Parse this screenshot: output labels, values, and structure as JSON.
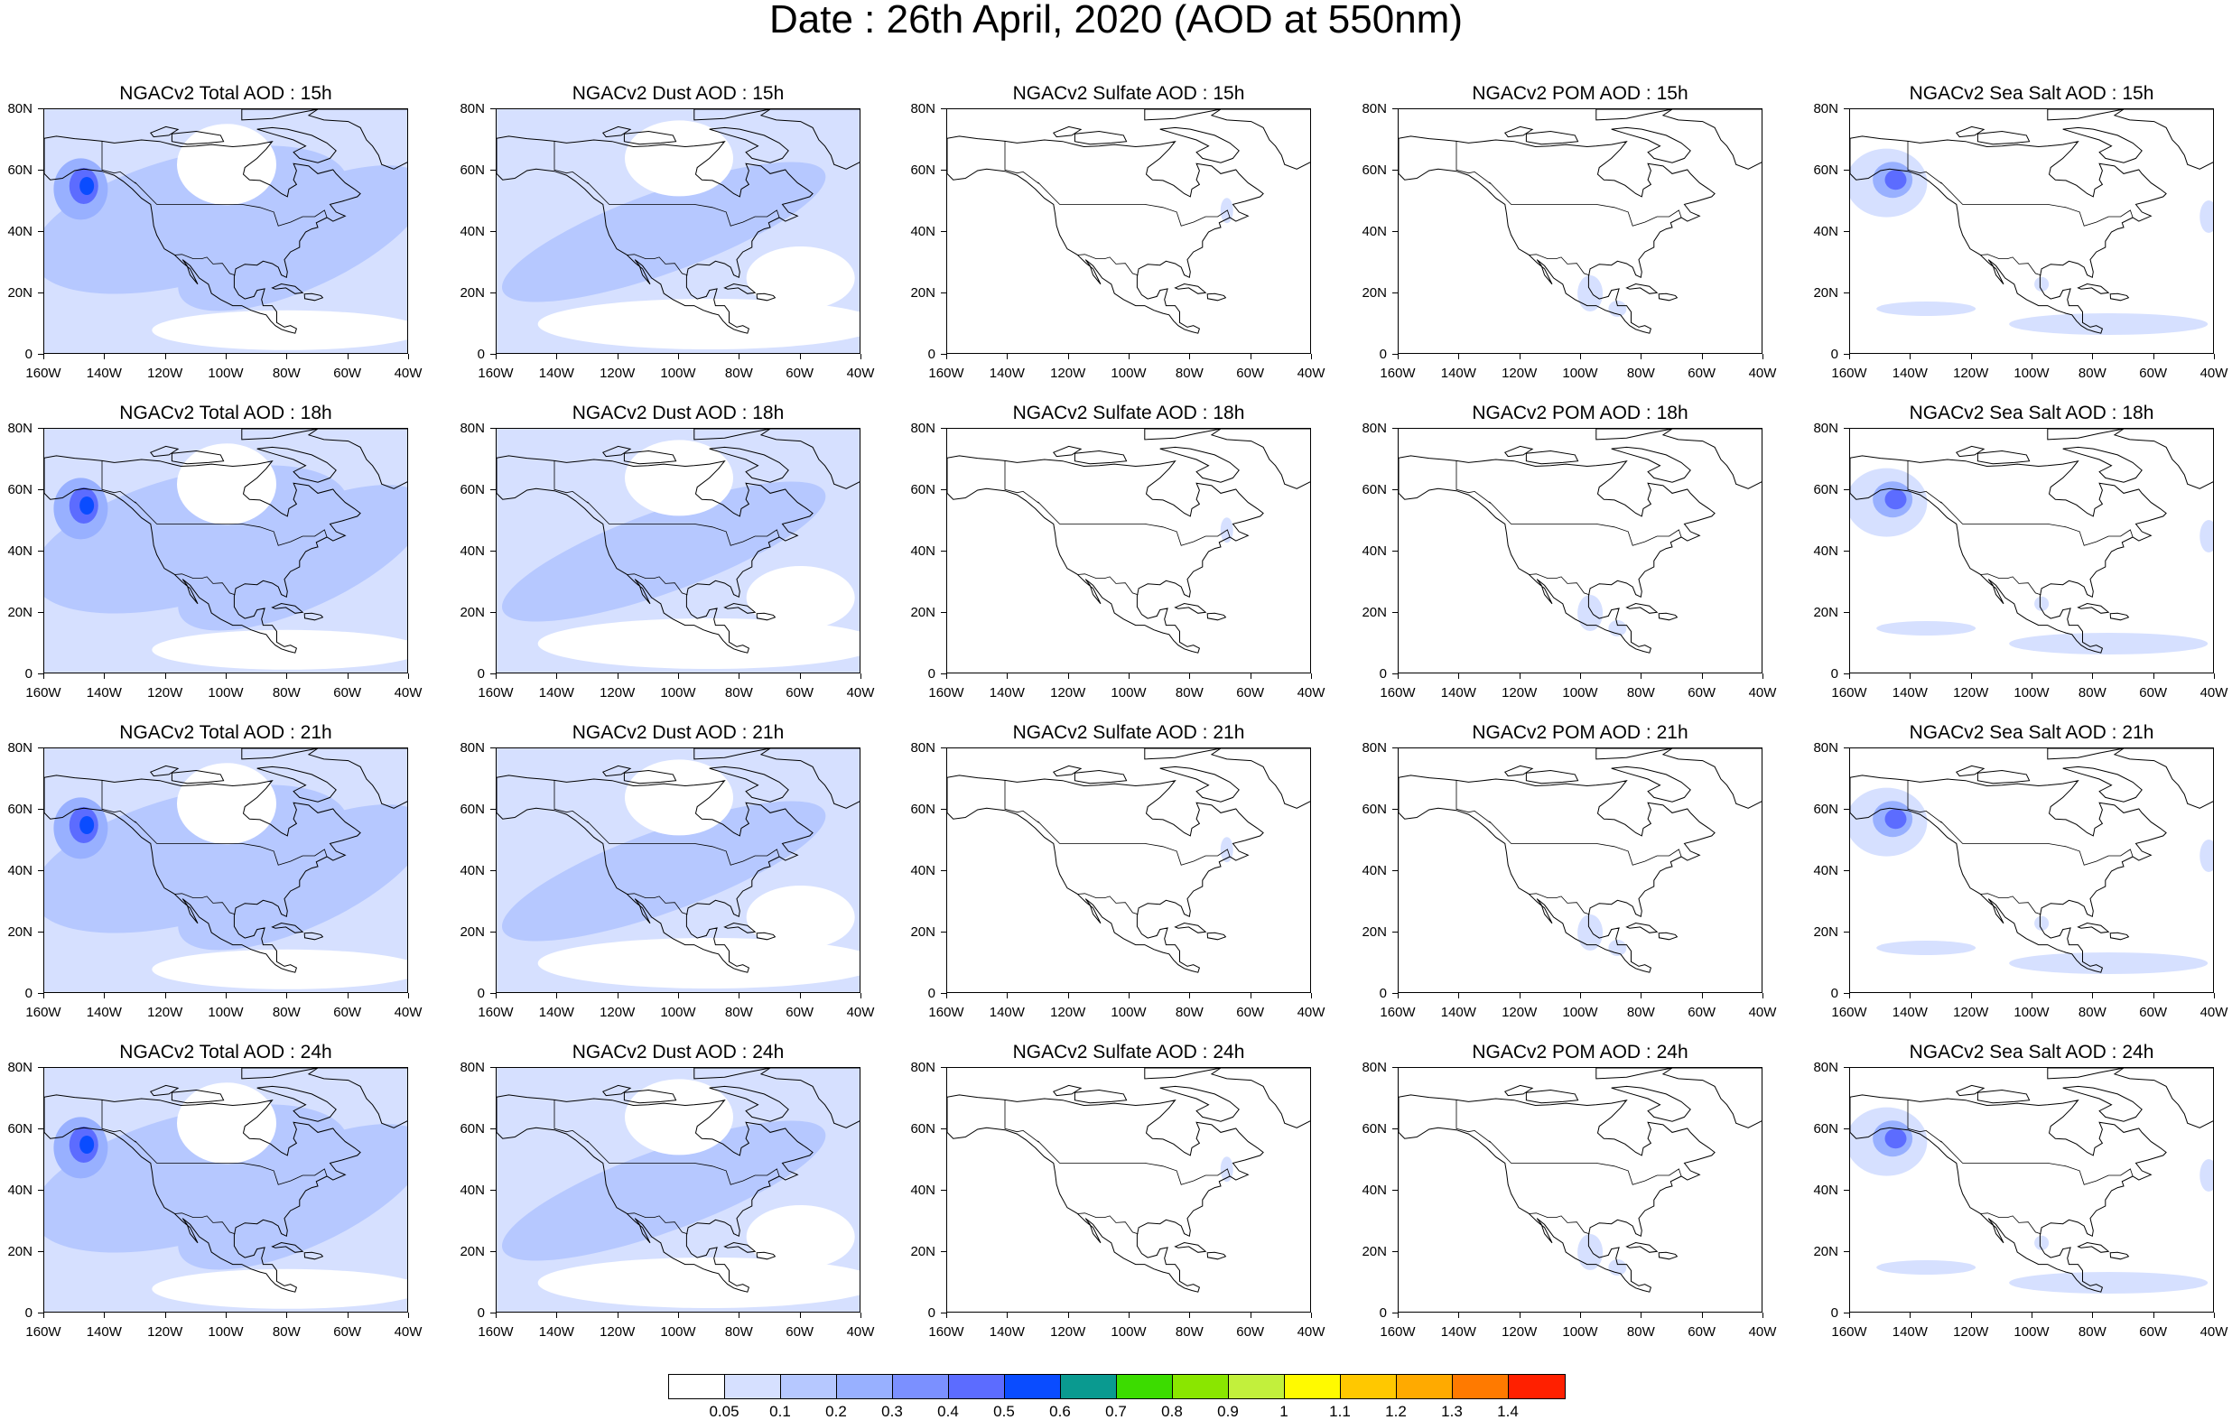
{
  "page": {
    "title": "Date : 26th April, 2020 (AOD at 550nm)"
  },
  "axes": {
    "y_ticks": [
      "80N",
      "60N",
      "40N",
      "20N",
      "0"
    ],
    "x_ticks": [
      "160W",
      "140W",
      "120W",
      "100W",
      "80W",
      "60W",
      "40W"
    ]
  },
  "panels": [
    {
      "title": "NGACv2 Total AOD : 15h",
      "field": "total",
      "hour": "15h"
    },
    {
      "title": "NGACv2 Dust AOD : 15h",
      "field": "dust",
      "hour": "15h"
    },
    {
      "title": "NGACv2 Sulfate AOD : 15h",
      "field": "sulfate",
      "hour": "15h"
    },
    {
      "title": "NGACv2 POM AOD : 15h",
      "field": "pom",
      "hour": "15h"
    },
    {
      "title": "NGACv2 Sea Salt AOD : 15h",
      "field": "seasalt",
      "hour": "15h"
    },
    {
      "title": "NGACv2 Total AOD : 18h",
      "field": "total",
      "hour": "18h"
    },
    {
      "title": "NGACv2 Dust AOD : 18h",
      "field": "dust",
      "hour": "18h"
    },
    {
      "title": "NGACv2 Sulfate AOD : 18h",
      "field": "sulfate",
      "hour": "18h"
    },
    {
      "title": "NGACv2 POM AOD : 18h",
      "field": "pom",
      "hour": "18h"
    },
    {
      "title": "NGACv2 Sea Salt AOD : 18h",
      "field": "seasalt",
      "hour": "18h"
    },
    {
      "title": "NGACv2 Total AOD : 21h",
      "field": "total",
      "hour": "21h"
    },
    {
      "title": "NGACv2 Dust AOD : 21h",
      "field": "dust",
      "hour": "21h"
    },
    {
      "title": "NGACv2 Sulfate AOD : 21h",
      "field": "sulfate",
      "hour": "21h"
    },
    {
      "title": "NGACv2 POM AOD : 21h",
      "field": "pom",
      "hour": "21h"
    },
    {
      "title": "NGACv2 Sea Salt AOD : 21h",
      "field": "seasalt",
      "hour": "21h"
    },
    {
      "title": "NGACv2 Total AOD : 24h",
      "field": "total",
      "hour": "24h"
    },
    {
      "title": "NGACv2 Dust AOD : 24h",
      "field": "dust",
      "hour": "24h"
    },
    {
      "title": "NGACv2 Sulfate AOD : 24h",
      "field": "sulfate",
      "hour": "24h"
    },
    {
      "title": "NGACv2 POM AOD : 24h",
      "field": "pom",
      "hour": "24h"
    },
    {
      "title": "NGACv2 Sea Salt  AOD : 24h",
      "field": "seasalt",
      "hour": "24h"
    }
  ],
  "colorbar": {
    "colors": [
      "#ffffff",
      "#d6e0ff",
      "#b6c8ff",
      "#98b0ff",
      "#7b90ff",
      "#5c6cff",
      "#0a4cff",
      "#0a9a90",
      "#3cdc00",
      "#8ae600",
      "#c2f03c",
      "#fffa00",
      "#ffc800",
      "#ffaa00",
      "#ff7a00",
      "#ff2000"
    ],
    "labels": [
      "0.05",
      "0.1",
      "0.2",
      "0.3",
      "0.4",
      "0.5",
      "0.6",
      "0.7",
      "0.8",
      "0.9",
      "1",
      "1.1",
      "1.2",
      "1.3",
      "1.4"
    ]
  }
}
